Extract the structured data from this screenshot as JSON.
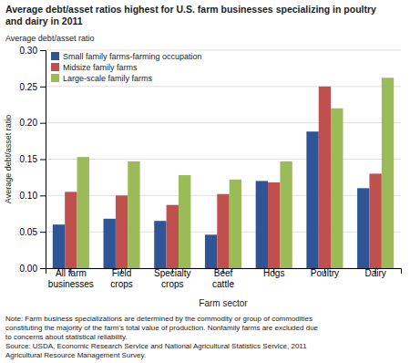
{
  "chart_data": {
    "type": "bar",
    "title": "Average debt/asset ratios highest for U.S. farm businesses specializing in poultry\nand dairy in 2011",
    "xlabel": "Farm sector",
    "ylabel": "Average debt/asset ratio",
    "categories": [
      "All farm\nbusinesses",
      "Field\ncrops",
      "Specialty\ncrops",
      "Beef\ncattle",
      "Hogs",
      "Poultry",
      "Dairy"
    ],
    "series": [
      {
        "name": "Small family farms-farming occupation",
        "color": "#2f5597",
        "values": [
          0.06,
          0.068,
          0.065,
          0.046,
          0.12,
          0.188,
          0.11
        ]
      },
      {
        "name": "Midsize family farms",
        "color": "#c0504d",
        "values": [
          0.105,
          0.1,
          0.087,
          0.102,
          0.118,
          0.25,
          0.13
        ]
      },
      {
        "name": "Large-scale family farms",
        "color": "#9bbb59",
        "values": [
          0.153,
          0.147,
          0.128,
          0.122,
          0.147,
          0.22,
          0.262
        ]
      }
    ],
    "ylim": [
      0,
      0.3
    ],
    "yticks": [
      {
        "value": 0.0,
        "label": "0.00"
      },
      {
        "value": 0.05,
        "label": "0.05"
      },
      {
        "value": 0.1,
        "label": "0.10"
      },
      {
        "value": 0.15,
        "label": "0.15"
      },
      {
        "value": 0.2,
        "label": "0.20"
      },
      {
        "value": 0.25,
        "label": "0.25"
      },
      {
        "value": 0.3,
        "label": "0.30"
      }
    ],
    "grid": true,
    "legend": "upper left",
    "note": "Note: Farm business specializations are determined by the commodity or group of commodities\nconstituting the majority of the farm's total value of production. Nonfamily farms are excluded due\nto concerns about statistical reliability.\nSource: USDA, Economic Research Service and National Agricultural Statistics Service, 2011\nAgricultural Resource Management Survey."
  }
}
